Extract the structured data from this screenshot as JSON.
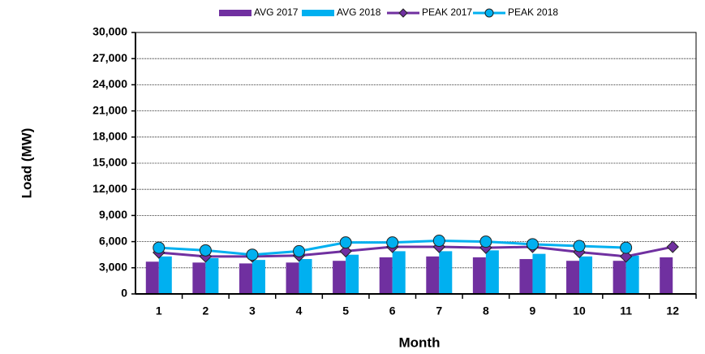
{
  "chart_data": {
    "type": "combo",
    "x_label": "Month",
    "y_label": "Load (MW)",
    "categories": [
      "1",
      "2",
      "3",
      "4",
      "5",
      "6",
      "7",
      "8",
      "9",
      "10",
      "11",
      "12"
    ],
    "series": [
      {
        "name": "AVG 2017",
        "type": "bar",
        "color": "#7030a0",
        "values": [
          3700,
          3600,
          3500,
          3600,
          3800,
          4200,
          4300,
          4200,
          4000,
          3800,
          3800,
          4200
        ]
      },
      {
        "name": "AVG 2018",
        "type": "bar",
        "color": "#00b0f0",
        "values": [
          4300,
          4100,
          3900,
          4000,
          4500,
          4900,
          4900,
          5000,
          4600,
          4300,
          4400,
          null
        ]
      },
      {
        "name": "PEAK 2017",
        "type": "line",
        "marker": "diamond",
        "color": "#7030a0",
        "values": [
          4750,
          4300,
          4300,
          4400,
          4900,
          5400,
          5400,
          5300,
          5400,
          4800,
          4300,
          5400
        ]
      },
      {
        "name": "PEAK 2018",
        "type": "line",
        "marker": "circle",
        "color": "#00b0f0",
        "values": [
          5300,
          5000,
          4500,
          4900,
          5900,
          5900,
          6100,
          6000,
          5700,
          5500,
          5300,
          null
        ]
      }
    ],
    "ylim": [
      0,
      30000
    ],
    "yticks": [
      0,
      {
        "value": 3000,
        "label": "3,000"
      },
      {
        "value": 6000,
        "label": "6,000"
      },
      {
        "value": 9000,
        "label": "9,000"
      },
      {
        "value": 12000,
        "label": "12,000"
      },
      {
        "value": 15000,
        "label": "15,000"
      },
      {
        "value": 18000,
        "label": "18,000"
      },
      {
        "value": 21000,
        "label": "21,000"
      },
      {
        "value": 24000,
        "label": "24,000"
      },
      {
        "value": 27000,
        "label": "27,000"
      },
      {
        "value": 30000,
        "label": "30,000"
      }
    ],
    "grid": true,
    "legend": "top"
  }
}
